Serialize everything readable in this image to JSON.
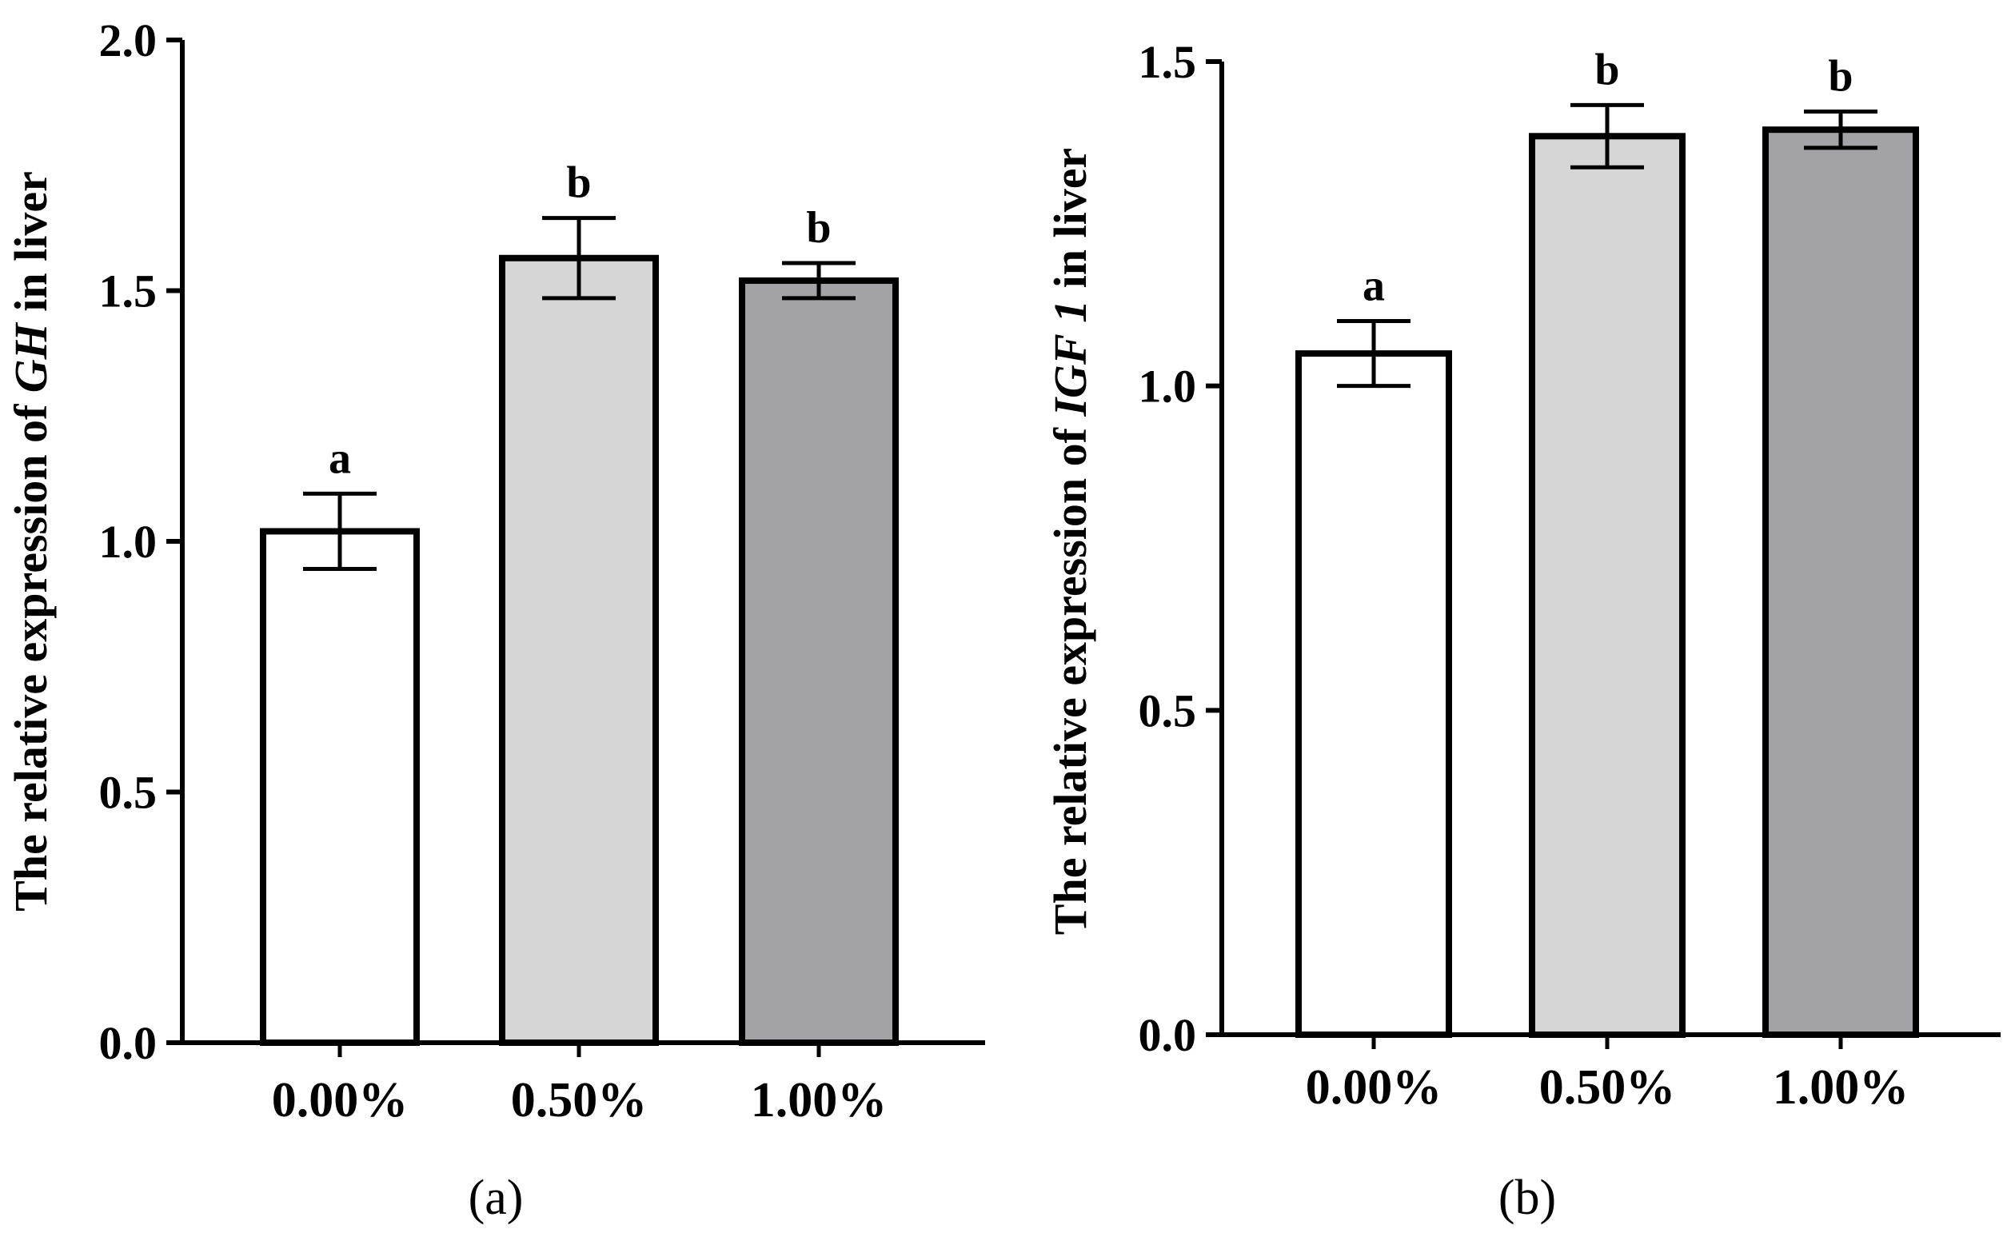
{
  "chart_data": [
    {
      "type": "bar",
      "panel_label": "(a)",
      "categories": [
        "0.00%",
        "0.50%",
        "1.00%"
      ],
      "values": [
        1.02,
        1.565,
        1.52
      ],
      "errors": [
        0.075,
        0.08,
        0.035
      ],
      "significance": [
        "a",
        "b",
        "b"
      ],
      "colors": [
        "#ffffff",
        "#d6d6d6",
        "#a3a3a7"
      ],
      "ylabel": {
        "prefix": "The relative expression of ",
        "gene": "GH",
        "suffix": " in liver"
      },
      "ylim": [
        0,
        2.0
      ],
      "yticks": [
        0.0,
        0.5,
        1.0,
        1.5,
        2.0
      ],
      "ytick_labels": [
        "0.0",
        "0.5",
        "1.0",
        "1.5",
        "2.0"
      ],
      "grid": false
    },
    {
      "type": "bar",
      "panel_label": "(b)",
      "categories": [
        "0.00%",
        "0.50%",
        "1.00%"
      ],
      "values": [
        1.05,
        1.385,
        1.395
      ],
      "errors": [
        0.05,
        0.048,
        0.028
      ],
      "significance": [
        "a",
        "b",
        "b"
      ],
      "colors": [
        "#ffffff",
        "#d6d6d6",
        "#a3a3a7"
      ],
      "ylabel": {
        "prefix": "The relative expression of ",
        "gene": "IGF 1",
        "suffix": " in liver"
      },
      "ylim": [
        0,
        1.5
      ],
      "yticks": [
        0.0,
        0.5,
        1.0,
        1.5
      ],
      "ytick_labels": [
        "0.0",
        "0.5",
        "1.0",
        "1.5"
      ],
      "grid": false
    }
  ]
}
